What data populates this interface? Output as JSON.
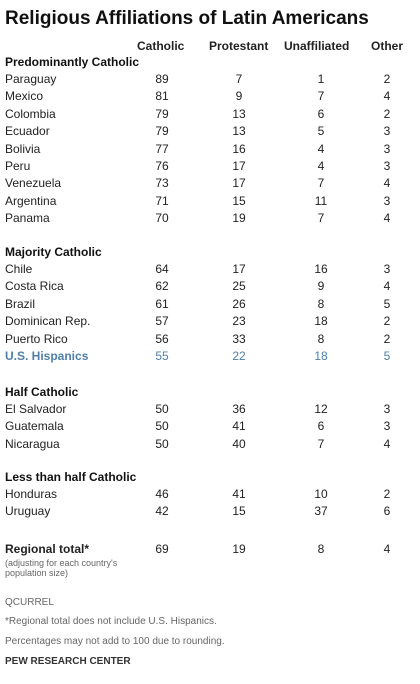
{
  "chart_data": {
    "type": "table",
    "title": "Religious Affiliations of Latin Americans",
    "columns": [
      "Catholic",
      "Protestant",
      "Unaffiliated",
      "Other"
    ],
    "sections": [
      {
        "label": "Predominantly Catholic",
        "rows": [
          {
            "name": "Paraguay",
            "values": [
              89,
              7,
              1,
              2
            ]
          },
          {
            "name": "Mexico",
            "values": [
              81,
              9,
              7,
              4
            ]
          },
          {
            "name": "Colombia",
            "values": [
              79,
              13,
              6,
              2
            ]
          },
          {
            "name": "Ecuador",
            "values": [
              79,
              13,
              5,
              3
            ]
          },
          {
            "name": "Bolivia",
            "values": [
              77,
              16,
              4,
              3
            ]
          },
          {
            "name": "Peru",
            "values": [
              76,
              17,
              4,
              3
            ]
          },
          {
            "name": "Venezuela",
            "values": [
              73,
              17,
              7,
              4
            ]
          },
          {
            "name": "Argentina",
            "values": [
              71,
              15,
              11,
              3
            ]
          },
          {
            "name": "Panama",
            "values": [
              70,
              19,
              7,
              4
            ]
          }
        ]
      },
      {
        "label": "Majority Catholic",
        "rows": [
          {
            "name": "Chile",
            "values": [
              64,
              17,
              16,
              3
            ]
          },
          {
            "name": "Costa Rica",
            "values": [
              62,
              25,
              9,
              4
            ]
          },
          {
            "name": "Brazil",
            "values": [
              61,
              26,
              8,
              5
            ]
          },
          {
            "name": "Dominican Rep.",
            "values": [
              57,
              23,
              18,
              2
            ]
          },
          {
            "name": "Puerto Rico",
            "values": [
              56,
              33,
              8,
              2
            ]
          },
          {
            "name": "U.S. Hispanics",
            "values": [
              55,
              22,
              18,
              5
            ],
            "highlight": true
          }
        ]
      },
      {
        "label": "Half Catholic",
        "rows": [
          {
            "name": "El Salvador",
            "values": [
              50,
              36,
              12,
              3
            ]
          },
          {
            "name": "Guatemala",
            "values": [
              50,
              41,
              6,
              3
            ]
          },
          {
            "name": "Nicaragua",
            "values": [
              50,
              40,
              7,
              4
            ]
          }
        ]
      },
      {
        "label": "Less than half Catholic",
        "rows": [
          {
            "name": "Honduras",
            "values": [
              46,
              41,
              10,
              2
            ]
          },
          {
            "name": "Uruguay",
            "values": [
              42,
              15,
              37,
              6
            ]
          }
        ]
      }
    ],
    "regional_total": {
      "name": "Regional total*",
      "note": "(adjusting for each country's population size)",
      "values": [
        69,
        19,
        8,
        4
      ]
    },
    "highlight_color": "#4f7fa8"
  },
  "source_code": "QCURREL",
  "notes": [
    "*Regional total does not include U.S. Hispanics.",
    "Percentages may not add to 100 due to rounding."
  ],
  "footer": "PEW RESEARCH CENTER"
}
